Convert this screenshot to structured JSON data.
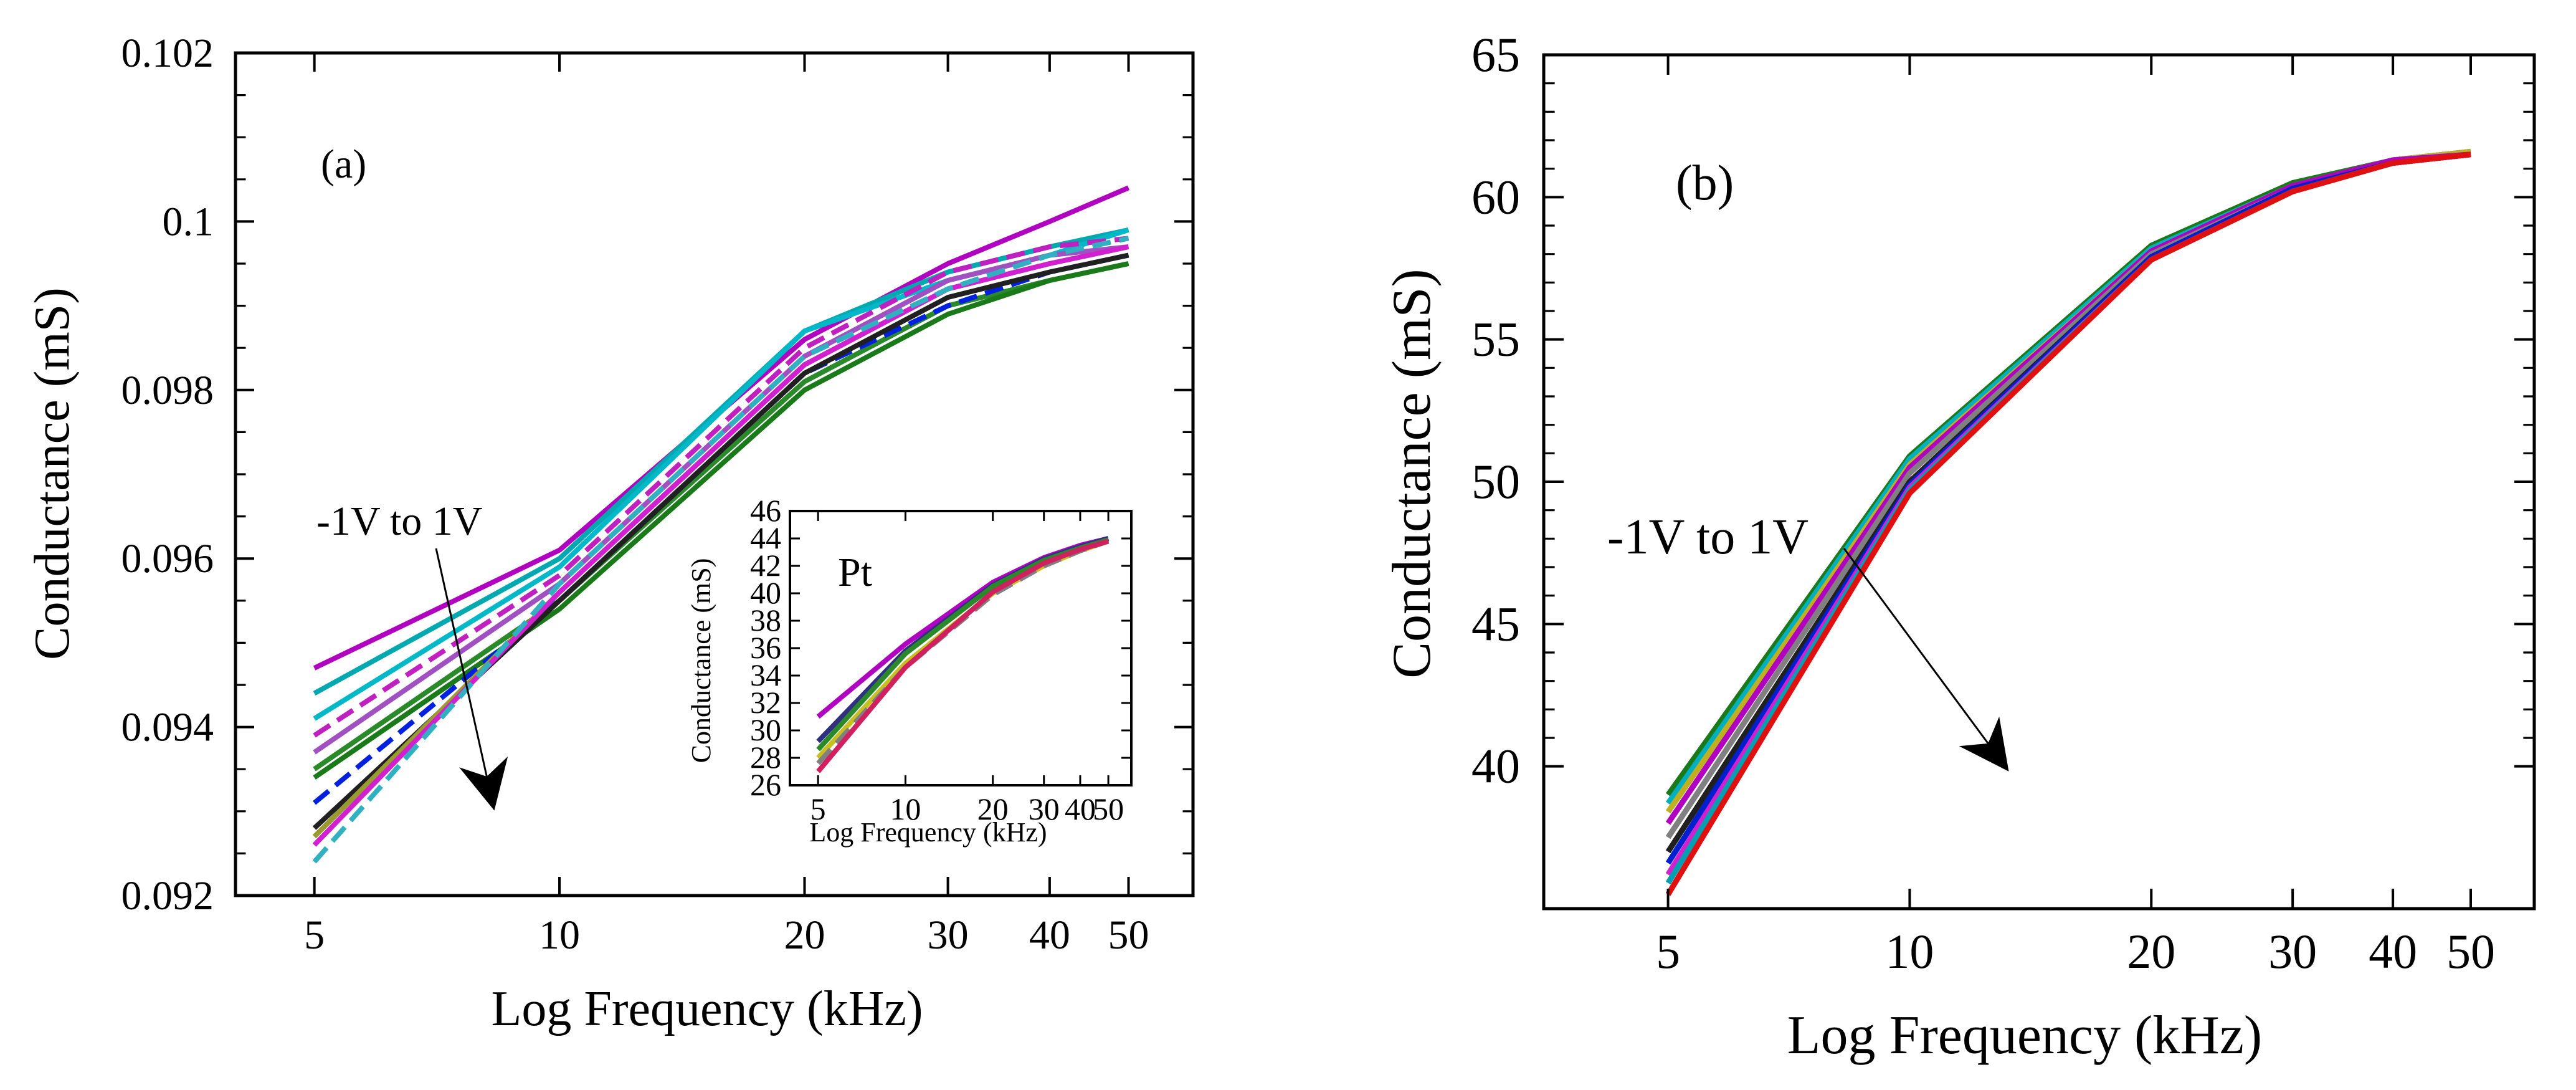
{
  "chart_data": [
    {
      "type": "line",
      "panel_label": "(a)",
      "xlabel": "Log Frequency (kHz)",
      "ylabel": "Conductance (mS)",
      "xscale": "log",
      "xlim": [
        4,
        60
      ],
      "ylim": [
        0.092,
        0.102
      ],
      "x": [
        5,
        10,
        20,
        30,
        40,
        50
      ],
      "xticks": [
        "5",
        "10",
        "20",
        "30",
        "40",
        "50"
      ],
      "yticks": [
        "0.092",
        "0.094",
        "0.096",
        "0.098",
        "0.1",
        "0.102"
      ],
      "annotation": "-1V to 1V",
      "series": [
        {
          "name": "s1",
          "color": "#b000c0",
          "values": [
            0.0947,
            0.0961,
            0.0986,
            0.0995,
            0.1,
            0.1004
          ]
        },
        {
          "name": "s2",
          "color": "#00a8b0",
          "values": [
            0.0944,
            0.096,
            0.0987,
            0.0994,
            0.0997,
            0.0999
          ]
        },
        {
          "name": "s3",
          "color": "#00b8c8",
          "values": [
            0.0941,
            0.0959,
            0.0987,
            0.0993,
            0.0996,
            0.0999
          ]
        },
        {
          "name": "s4",
          "color": "#c020c0",
          "values": [
            0.0939,
            0.0958,
            0.0985,
            0.0994,
            0.0997,
            0.0998
          ]
        },
        {
          "name": "s5",
          "color": "#a050c0",
          "values": [
            0.0937,
            0.0957,
            0.0984,
            0.0993,
            0.0996,
            0.0997
          ]
        },
        {
          "name": "s6",
          "color": "#2a8a2a",
          "values": [
            0.0935,
            0.0955,
            0.0981,
            0.099,
            0.0993,
            0.0995
          ]
        },
        {
          "name": "s7",
          "color": "#1a7a1a",
          "values": [
            0.0934,
            0.0954,
            0.098,
            0.0989,
            0.0993,
            0.0995
          ]
        },
        {
          "name": "s8",
          "color": "#0020e0",
          "values": [
            0.0931,
            0.0955,
            0.0982,
            0.099,
            0.0994,
            0.0996
          ]
        },
        {
          "name": "s9",
          "color": "#202020",
          "values": [
            0.0928,
            0.0955,
            0.0982,
            0.0991,
            0.0994,
            0.0996
          ]
        },
        {
          "name": "s10",
          "color": "#9a9a30",
          "values": [
            0.0927,
            0.0956,
            0.0983,
            0.0992,
            0.0995,
            0.0997
          ]
        },
        {
          "name": "s11",
          "color": "#d020d0",
          "values": [
            0.0926,
            0.0956,
            0.0983,
            0.0992,
            0.0995,
            0.0997
          ]
        },
        {
          "name": "s12",
          "color": "#30b0c0",
          "values": [
            0.0924,
            0.0957,
            0.0984,
            0.0992,
            0.0996,
            0.0998
          ]
        }
      ],
      "inset": {
        "type": "line",
        "annotation": "Pt",
        "xlabel": "Log Frequency (kHz)",
        "ylabel": "Conductance (mS)",
        "xscale": "log",
        "xlim": [
          4,
          60
        ],
        "ylim": [
          26,
          46
        ],
        "x": [
          5,
          10,
          20,
          30,
          40,
          50
        ],
        "xticks": [
          "5",
          "10",
          "20",
          "30",
          "40",
          "50"
        ],
        "yticks": [
          "26",
          "28",
          "30",
          "32",
          "34",
          "36",
          "38",
          "40",
          "42",
          "44",
          "46"
        ],
        "series": [
          {
            "name": "i1",
            "color": "#b000c0",
            "values": [
              31.0,
              36.3,
              40.8,
              42.6,
              43.5,
              44.0
            ]
          },
          {
            "name": "i2",
            "color": "#303080",
            "values": [
              29.2,
              35.8,
              40.6,
              42.5,
              43.4,
              44.0
            ]
          },
          {
            "name": "i3",
            "color": "#2a8a2a",
            "values": [
              28.6,
              35.6,
              40.5,
              42.4,
              43.3,
              43.9
            ]
          },
          {
            "name": "i4",
            "color": "#c8c020",
            "values": [
              28.0,
              34.9,
              40.0,
              42.0,
              43.1,
              43.8
            ]
          },
          {
            "name": "i5",
            "color": "#808080",
            "values": [
              27.6,
              34.6,
              39.9,
              42.0,
              43.1,
              43.8
            ]
          },
          {
            "name": "i6",
            "color": "#d02060",
            "values": [
              27.0,
              34.6,
              40.1,
              42.2,
              43.2,
              43.8
            ]
          }
        ]
      }
    },
    {
      "type": "line",
      "panel_label": "(b)",
      "xlabel": "Log Frequency (kHz)",
      "ylabel": "Conductance (mS)",
      "xscale": "log",
      "xlim": [
        3.5,
        60
      ],
      "ylim": [
        35,
        65
      ],
      "x": [
        5,
        10,
        20,
        30,
        40,
        50
      ],
      "xticks": [
        "5",
        "10",
        "20",
        "30",
        "40",
        "50"
      ],
      "yticks": [
        "40",
        "45",
        "50",
        "55",
        "60",
        "65"
      ],
      "annotation": "-1V to 1V",
      "series": [
        {
          "name": "b1",
          "color": "#1a7a1a",
          "values": [
            39.0,
            50.9,
            58.3,
            60.5,
            61.3,
            61.6
          ]
        },
        {
          "name": "b2",
          "color": "#00b0c0",
          "values": [
            38.7,
            50.8,
            58.2,
            60.4,
            61.3,
            61.6
          ]
        },
        {
          "name": "b3",
          "color": "#c0b020",
          "values": [
            38.4,
            50.6,
            58.1,
            60.4,
            61.3,
            61.6
          ]
        },
        {
          "name": "b4",
          "color": "#b000c0",
          "values": [
            38.0,
            50.5,
            58.1,
            60.4,
            61.3,
            61.5
          ]
        },
        {
          "name": "b5",
          "color": "#808080",
          "values": [
            37.5,
            50.3,
            58.0,
            60.3,
            61.2,
            61.5
          ]
        },
        {
          "name": "b6",
          "color": "#202020",
          "values": [
            37.0,
            50.0,
            57.9,
            60.3,
            61.2,
            61.5
          ]
        },
        {
          "name": "b7",
          "color": "#0020d0",
          "values": [
            36.6,
            49.9,
            57.9,
            60.3,
            61.2,
            61.5
          ]
        },
        {
          "name": "b8",
          "color": "#d020d0",
          "values": [
            36.2,
            49.8,
            57.8,
            60.2,
            61.2,
            61.5
          ]
        },
        {
          "name": "b9",
          "color": "#00a0b0",
          "values": [
            35.9,
            49.7,
            57.8,
            60.2,
            61.2,
            61.5
          ]
        },
        {
          "name": "b10",
          "color": "#e01010",
          "values": [
            35.5,
            49.6,
            57.8,
            60.2,
            61.2,
            61.5
          ]
        }
      ]
    }
  ]
}
